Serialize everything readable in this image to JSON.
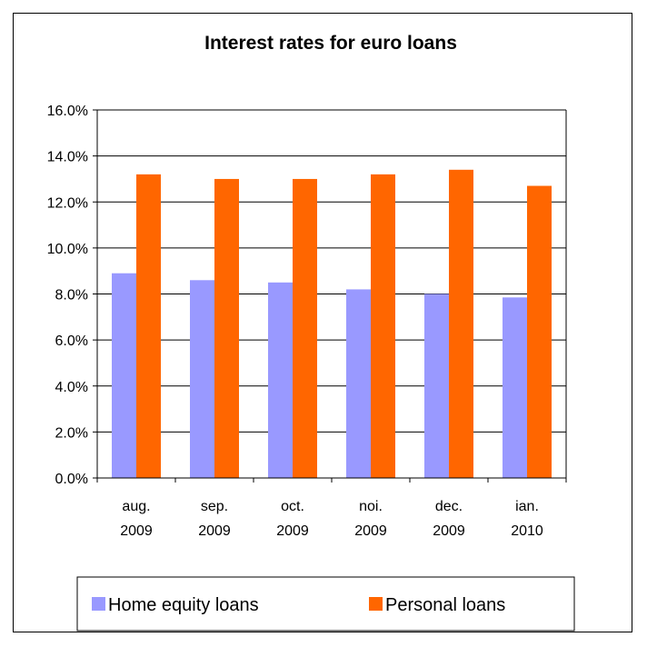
{
  "chart_data": {
    "type": "bar",
    "title": "Interest rates for euro loans",
    "categories": [
      [
        "aug.",
        "2009"
      ],
      [
        "sep.",
        "2009"
      ],
      [
        "oct.",
        "2009"
      ],
      [
        "noi.",
        "2009"
      ],
      [
        "dec.",
        "2009"
      ],
      [
        "ian.",
        "2010"
      ]
    ],
    "series": [
      {
        "name": "Home equity loans",
        "color": "#9999ff",
        "values": [
          8.9,
          8.6,
          8.5,
          8.2,
          8.0,
          7.85
        ]
      },
      {
        "name": "Personal loans",
        "color": "#ff6600",
        "values": [
          13.2,
          13.0,
          13.0,
          13.2,
          13.4,
          12.7
        ]
      }
    ],
    "ylim": [
      0,
      16
    ],
    "yticks": [
      "0.0%",
      "2.0%",
      "4.0%",
      "6.0%",
      "8.0%",
      "10.0%",
      "12.0%",
      "14.0%",
      "16.0%"
    ],
    "ytick_values": [
      0,
      2,
      4,
      6,
      8,
      10,
      12,
      14,
      16
    ],
    "grid": true,
    "legend_position": "bottom"
  }
}
